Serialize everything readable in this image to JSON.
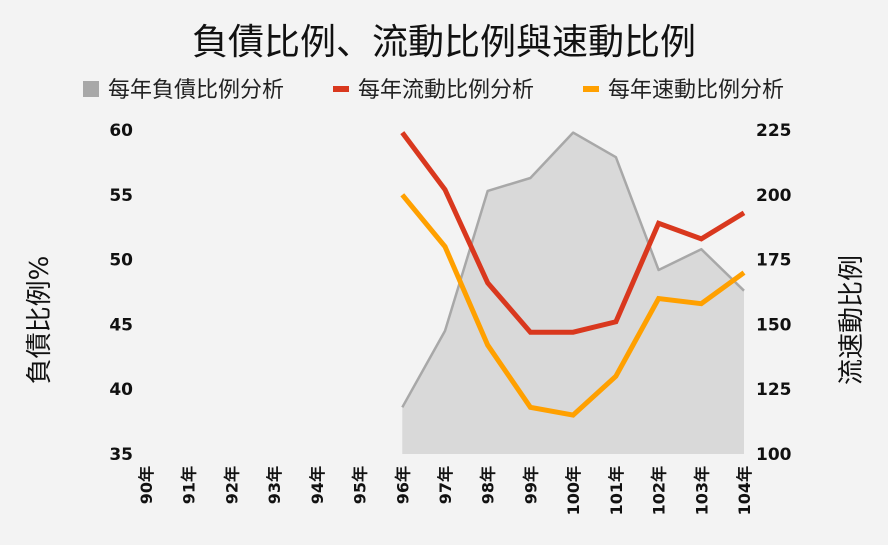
{
  "chart_data": {
    "type": "line",
    "title": "負債比例、流動比例與速動比例",
    "categories": [
      "90年",
      "91年",
      "92年",
      "93年",
      "94年",
      "95年",
      "96年",
      "97年",
      "98年",
      "99年",
      "100年",
      "101年",
      "102年",
      "103年",
      "104年"
    ],
    "series": [
      {
        "name": "每年負債比例分析",
        "type": "area",
        "axis": "left",
        "color": "#a8a8a8",
        "values": [
          null,
          null,
          null,
          null,
          null,
          null,
          38.6,
          44.5,
          55.3,
          56.3,
          59.8,
          57.9,
          49.2,
          50.8,
          47.6
        ]
      },
      {
        "name": "每年流動比例分析",
        "type": "line",
        "axis": "right",
        "color": "#d9381e",
        "values": [
          null,
          null,
          null,
          null,
          null,
          null,
          224,
          202,
          166,
          147,
          147,
          151,
          189,
          183,
          193
        ]
      },
      {
        "name": "每年速動比例分析",
        "type": "line",
        "axis": "right",
        "color": "#ffa000",
        "values": [
          null,
          null,
          null,
          null,
          null,
          null,
          200,
          180,
          142,
          118,
          115,
          130,
          160,
          158,
          170
        ]
      }
    ],
    "left_axis": {
      "label": "負債比例%",
      "min": 35,
      "max": 60,
      "ticks": [
        35,
        40,
        45,
        50,
        55,
        60
      ]
    },
    "right_axis": {
      "label": "流速動比例",
      "min": 100,
      "max": 225,
      "ticks": [
        100,
        125,
        150,
        175,
        200,
        225
      ]
    },
    "legend_position": "top",
    "grid": false
  }
}
